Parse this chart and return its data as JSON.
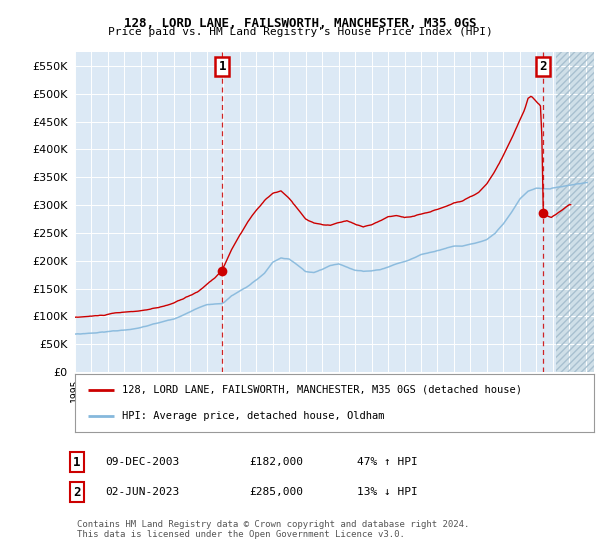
{
  "title1": "128, LORD LANE, FAILSWORTH, MANCHESTER, M35 0GS",
  "title2": "Price paid vs. HM Land Registry's House Price Index (HPI)",
  "legend_label_red": "128, LORD LANE, FAILSWORTH, MANCHESTER, M35 0GS (detached house)",
  "legend_label_blue": "HPI: Average price, detached house, Oldham",
  "annotation1_label": "1",
  "annotation1_date": "09-DEC-2003",
  "annotation1_price": "£182,000",
  "annotation1_hpi": "47% ↑ HPI",
  "annotation2_label": "2",
  "annotation2_date": "02-JUN-2023",
  "annotation2_price": "£285,000",
  "annotation2_hpi": "13% ↓ HPI",
  "footer": "Contains HM Land Registry data © Crown copyright and database right 2024.\nThis data is licensed under the Open Government Licence v3.0.",
  "ylim": [
    0,
    575000
  ],
  "yticks": [
    0,
    50000,
    100000,
    150000,
    200000,
    250000,
    300000,
    350000,
    400000,
    450000,
    500000,
    550000
  ],
  "bg_color": "#dce9f5",
  "hatch_color": "#c8dcea",
  "red_color": "#cc0000",
  "blue_color": "#85b8dc",
  "marker1_date_num": 2003.94,
  "marker1_value": 182000,
  "marker2_date_num": 2023.42,
  "marker2_value": 285000,
  "vline1_date_num": 2003.94,
  "vline2_date_num": 2023.42,
  "xmin": 1995.0,
  "xmax": 2026.5,
  "hatch_start": 2024.17
}
